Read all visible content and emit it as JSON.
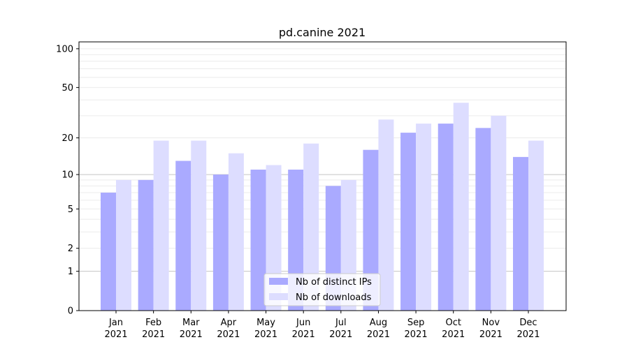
{
  "chart_data": {
    "type": "bar",
    "title": "pd.canine 2021",
    "xlabel": "",
    "ylabel": "",
    "yscale": "log(x+1)",
    "ylim": [
      0,
      113
    ],
    "grid": true,
    "categories": [
      "Jan\n2021",
      "Feb\n2021",
      "Mar\n2021",
      "Apr\n2021",
      "May\n2021",
      "Jun\n2021",
      "Jul\n2021",
      "Aug\n2021",
      "Sep\n2021",
      "Oct\n2021",
      "Nov\n2021",
      "Dec\n2021"
    ],
    "yticks": [
      0,
      1,
      2,
      5,
      10,
      20,
      50,
      100
    ],
    "series": [
      {
        "name": "Nb of distinct IPs",
        "color": "#aaaaff",
        "values": [
          7,
          9,
          13,
          10,
          11,
          11,
          8,
          16,
          22,
          26,
          24,
          14
        ]
      },
      {
        "name": "Nb of downloads",
        "color": "#ddddff",
        "values": [
          9,
          19,
          19,
          15,
          12,
          18,
          9,
          28,
          26,
          38,
          30,
          19
        ]
      }
    ],
    "legend": "lower-center"
  }
}
